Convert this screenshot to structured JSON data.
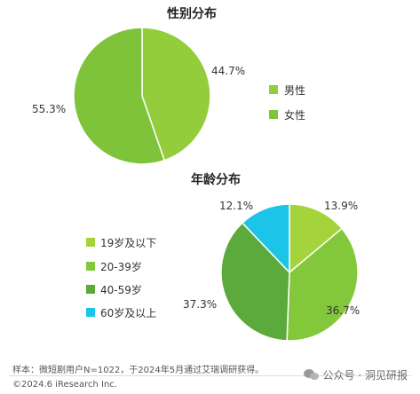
{
  "chart_data": [
    {
      "type": "pie",
      "title": "性别分布",
      "start_angle_deg": 0,
      "direction": "clockwise",
      "categories": [
        "男性",
        "女性"
      ],
      "values": [
        44.7,
        55.3
      ],
      "labels": [
        "44.7%",
        "55.3%"
      ],
      "colors": [
        "#93cd3c",
        "#7ec339"
      ],
      "legend_position": "right"
    },
    {
      "type": "pie",
      "title": "年龄分布",
      "start_angle_deg": 0,
      "direction": "clockwise",
      "categories": [
        "19岁及以下",
        "20-39岁",
        "40-59岁",
        "60岁及以上"
      ],
      "values": [
        13.9,
        36.7,
        37.3,
        12.1
      ],
      "labels": [
        "13.9%",
        "36.7%",
        "37.3%",
        "12.1%"
      ],
      "colors": [
        "#a4d33c",
        "#83c73a",
        "#5ca93c",
        "#1cc5e8"
      ],
      "legend_position": "left"
    }
  ],
  "footer": {
    "source": "样本：微短剧用户N=1022，于2024年5月通过艾瑞调研获得。",
    "copyright": "©2024.6 iResearch Inc.",
    "watermark": "公众号 · 洞见研报",
    "watermark_icon": "wechat-icon"
  }
}
